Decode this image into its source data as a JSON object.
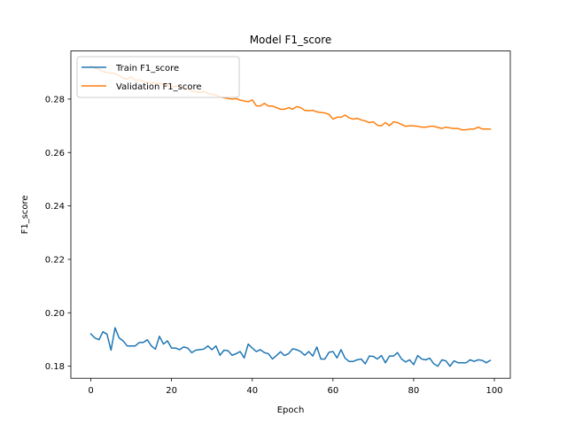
{
  "chart_data": {
    "type": "line",
    "title": "Model F1_score",
    "xlabel": "Epoch",
    "ylabel": "F1_score",
    "xlim": [
      -4.95,
      103.95
    ],
    "ylim": [
      0.1755,
      0.298
    ],
    "xticks": [
      "0",
      "20",
      "40",
      "60",
      "80",
      "100"
    ],
    "yticks": [
      "0.18",
      "0.20",
      "0.22",
      "0.24",
      "0.26",
      "0.28"
    ],
    "grid": false,
    "legend_position": "top-left",
    "series": [
      {
        "name": "Train F1_score",
        "color": "#1f77b4",
        "values": [
          0.1921,
          0.1906,
          0.1899,
          0.1929,
          0.192,
          0.186,
          0.1944,
          0.1906,
          0.1895,
          0.1876,
          0.1876,
          0.1876,
          0.1889,
          0.1889,
          0.1899,
          0.1876,
          0.1864,
          0.1912,
          0.1883,
          0.1895,
          0.1868,
          0.1868,
          0.1862,
          0.1872,
          0.1868,
          0.1851,
          0.186,
          0.1862,
          0.1864,
          0.1876,
          0.1862,
          0.1876,
          0.1841,
          0.186,
          0.1858,
          0.1841,
          0.1847,
          0.1855,
          0.1831,
          0.1883,
          0.1868,
          0.1855,
          0.1862,
          0.1851,
          0.1847,
          0.1827,
          0.184,
          0.1854,
          0.184,
          0.1847,
          0.1865,
          0.1862,
          0.1855,
          0.1841,
          0.1855,
          0.1838,
          0.1872,
          0.1827,
          0.1827,
          0.1852,
          0.1855,
          0.1831,
          0.1862,
          0.183,
          0.1818,
          0.1818,
          0.1824,
          0.1827,
          0.1809,
          0.1838,
          0.1837,
          0.1827,
          0.184,
          0.1813,
          0.1838,
          0.1838,
          0.1851,
          0.1827,
          0.1816,
          0.1824,
          0.1806,
          0.184,
          0.1827,
          0.1824,
          0.183,
          0.1809,
          0.18,
          0.1824,
          0.182,
          0.18,
          0.182,
          0.1813,
          0.1813,
          0.1813,
          0.1824,
          0.1818,
          0.1824,
          0.1822,
          0.1813,
          0.1822
        ]
      },
      {
        "name": "Validation F1_score",
        "color": "#ff7f0e",
        "values": [
          0.2925,
          0.2916,
          0.2912,
          0.2903,
          0.29,
          0.2897,
          0.2895,
          0.2888,
          0.2878,
          0.2875,
          0.2884,
          0.287,
          0.2872,
          0.2866,
          0.2862,
          0.286,
          0.286,
          0.2858,
          0.2855,
          0.2852,
          0.2845,
          0.2849,
          0.2845,
          0.2841,
          0.2838,
          0.283,
          0.2828,
          0.2825,
          0.2828,
          0.2822,
          0.2818,
          0.2815,
          0.2808,
          0.2805,
          0.2802,
          0.28,
          0.2802,
          0.2796,
          0.2793,
          0.279,
          0.2797,
          0.2775,
          0.2774,
          0.2784,
          0.2774,
          0.2774,
          0.2768,
          0.2762,
          0.2762,
          0.2768,
          0.2762,
          0.2772,
          0.2768,
          0.2758,
          0.2756,
          0.2758,
          0.2752,
          0.275,
          0.2748,
          0.2743,
          0.2725,
          0.2732,
          0.2732,
          0.274,
          0.273,
          0.2725,
          0.2728,
          0.2722,
          0.2718,
          0.2712,
          0.2715,
          0.2702,
          0.27,
          0.2712,
          0.27,
          0.2715,
          0.2712,
          0.2705,
          0.2698,
          0.27,
          0.27,
          0.2698,
          0.2695,
          0.2695,
          0.2698,
          0.2698,
          0.2694,
          0.269,
          0.2695,
          0.2692,
          0.269,
          0.269,
          0.2685,
          0.2685,
          0.2688,
          0.2688,
          0.2695,
          0.2688,
          0.2688,
          0.2688
        ]
      }
    ]
  }
}
